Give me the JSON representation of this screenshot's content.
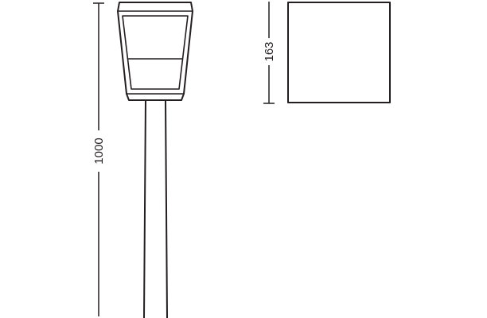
{
  "dimensions": {
    "total_height": "1000",
    "head_height": "163"
  },
  "colors": {
    "stroke": "#231f20",
    "background": "#ffffff"
  }
}
